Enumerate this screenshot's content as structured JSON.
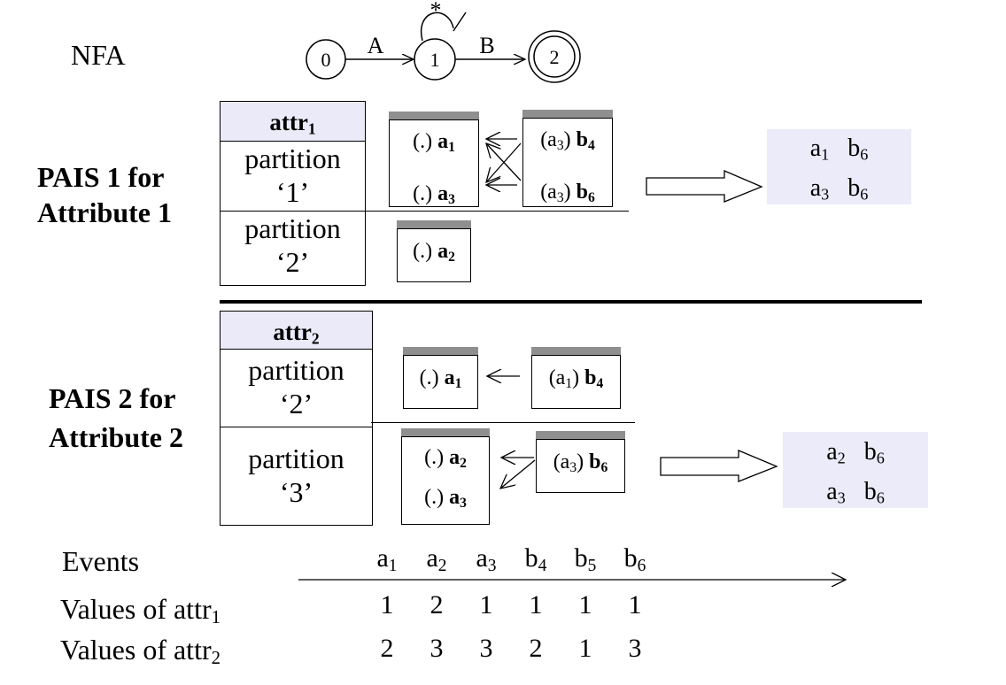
{
  "nfa": {
    "label": "NFA",
    "states": [
      "0",
      "1",
      "2"
    ],
    "transitions": [
      "A",
      "B"
    ],
    "self_loop": "*"
  },
  "pais1": {
    "label_line1": "PAIS 1 for",
    "label_line2": "Attribute 1",
    "header": "attr",
    "header_sub": "1",
    "partitions": [
      {
        "line1": "partition",
        "line2": "‘1’"
      },
      {
        "line1": "partition",
        "line2": "‘2’"
      }
    ],
    "stack_a_p1": [
      {
        "prefix": "(.) ",
        "name": "a",
        "sub": "1"
      },
      {
        "prefix": "(.) ",
        "name": "a",
        "sub": "3"
      }
    ],
    "stack_b_p1": [
      {
        "prefix_open": "(a",
        "prefix_sub": "3",
        "prefix_close": ") ",
        "name": "b",
        "sub": "4"
      },
      {
        "prefix_open": "(a",
        "prefix_sub": "3",
        "prefix_close": ") ",
        "name": "b",
        "sub": "6"
      }
    ],
    "stack_a_p2": [
      {
        "prefix": "(.) ",
        "name": "a",
        "sub": "2"
      }
    ],
    "result": [
      {
        "a": "a",
        "a_sub": "1",
        "b": "b",
        "b_sub": "6"
      },
      {
        "a": "a",
        "a_sub": "3",
        "b": "b",
        "b_sub": "6"
      }
    ]
  },
  "pais2": {
    "label_line1": "PAIS 2 for",
    "label_line2": "Attribute 2",
    "header": "attr",
    "header_sub": "2",
    "partitions": [
      {
        "line1": "partition",
        "line2": "‘2’"
      },
      {
        "line1": "partition",
        "line2": "‘3’"
      }
    ],
    "stack_a_p2": [
      {
        "prefix": "(.) ",
        "name": "a",
        "sub": "1"
      }
    ],
    "stack_b_p2": [
      {
        "prefix_open": "(a",
        "prefix_sub": "1",
        "prefix_close": ") ",
        "name": "b",
        "sub": "4"
      }
    ],
    "stack_a_p3": [
      {
        "prefix": "(.) ",
        "name": "a",
        "sub": "2"
      },
      {
        "prefix": "(.) ",
        "name": "a",
        "sub": "3"
      }
    ],
    "stack_b_p3": [
      {
        "prefix_open": "(a",
        "prefix_sub": "3",
        "prefix_close": ") ",
        "name": "b",
        "sub": "6"
      }
    ],
    "result": [
      {
        "a": "a",
        "a_sub": "2",
        "b": "b",
        "b_sub": "6"
      },
      {
        "a": "a",
        "a_sub": "3",
        "b": "b",
        "b_sub": "6"
      }
    ]
  },
  "events": {
    "label": "Events",
    "attr1_label": "Values of attr",
    "attr1_sub": "1",
    "attr2_label": "Values of attr",
    "attr2_sub": "2",
    "items": [
      {
        "name": "a",
        "sub": "1",
        "attr1": "1",
        "attr2": "2"
      },
      {
        "name": "a",
        "sub": "2",
        "attr1": "2",
        "attr2": "3"
      },
      {
        "name": "a",
        "sub": "3",
        "attr1": "1",
        "attr2": "3"
      },
      {
        "name": "b",
        "sub": "4",
        "attr1": "1",
        "attr2": "2"
      },
      {
        "name": "b",
        "sub": "5",
        "attr1": "1",
        "attr2": "1"
      },
      {
        "name": "b",
        "sub": "6",
        "attr1": "1",
        "attr2": "3"
      }
    ]
  }
}
